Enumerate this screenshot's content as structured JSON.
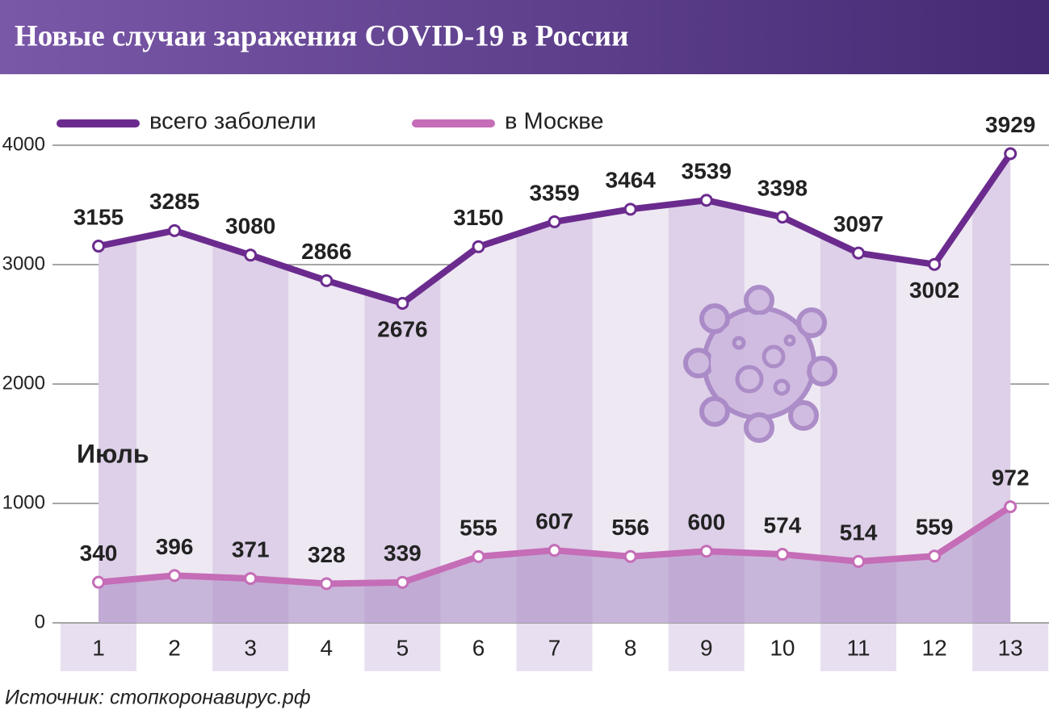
{
  "chart_data": {
    "type": "line",
    "title": "Новые случаи заражения COVID-19 в России",
    "annotation": "Июль",
    "source": "Источник: стопкоронавирус.рф",
    "categories": [
      "1",
      "2",
      "3",
      "4",
      "5",
      "6",
      "7",
      "8",
      "9",
      "10",
      "11",
      "12",
      "13"
    ],
    "series": [
      {
        "name": "всего заболели",
        "color": "#6b2b8e",
        "values": [
          3155,
          3285,
          3080,
          2866,
          2676,
          3150,
          3359,
          3464,
          3539,
          3398,
          3097,
          3002,
          3929
        ]
      },
      {
        "name": "в Москве",
        "color": "#c56db7",
        "values": [
          340,
          396,
          371,
          328,
          339,
          555,
          607,
          556,
          600,
          574,
          514,
          559,
          972
        ]
      }
    ],
    "ylim": [
      0,
      4000
    ],
    "yticks": [
      0,
      1000,
      2000,
      3000,
      4000
    ],
    "grid": true
  }
}
